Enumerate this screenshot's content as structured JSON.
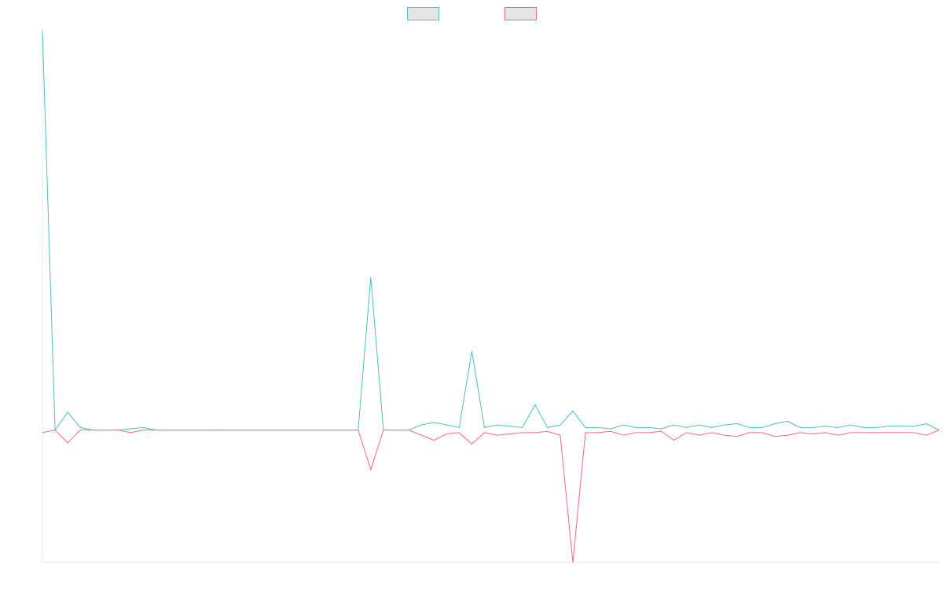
{
  "chart_data": {
    "type": "line",
    "title": "",
    "xlabel": "",
    "ylabel": "",
    "grid": false,
    "legend_position": "top-center",
    "ylim": [
      -52,
      158
    ],
    "x": [
      0,
      1,
      2,
      3,
      4,
      5,
      6,
      7,
      8,
      9,
      10,
      11,
      12,
      13,
      14,
      15,
      16,
      17,
      18,
      19,
      20,
      21,
      22,
      23,
      24,
      25,
      26,
      27,
      28,
      29,
      30,
      31,
      32,
      33,
      34,
      35,
      36,
      37,
      38,
      39,
      40,
      41,
      42,
      43,
      44,
      45,
      46,
      47,
      48,
      49,
      50,
      51,
      52,
      53,
      54,
      55,
      56,
      57,
      58,
      59,
      60,
      61,
      62,
      63,
      64,
      65,
      66,
      67,
      68,
      69,
      70,
      71
    ],
    "series": [
      {
        "name": "",
        "color": "#4bc0c0",
        "fill": "#e5e5e5",
        "values": [
          157,
          0,
          7,
          1,
          0,
          0,
          0,
          0.5,
          1,
          0,
          0,
          0,
          0,
          0,
          0,
          0,
          0,
          0,
          0,
          0,
          0,
          0,
          0,
          0,
          0,
          0,
          60,
          0,
          0,
          0,
          2,
          3,
          2,
          1,
          31,
          1,
          2,
          1.5,
          1,
          10,
          1,
          2,
          7.5,
          1,
          1,
          0.5,
          2,
          1,
          1,
          0.5,
          2,
          1,
          2,
          1,
          2,
          2.5,
          1,
          1,
          2.5,
          3.5,
          1,
          1,
          1.5,
          1,
          2,
          1,
          1,
          1.5,
          1.5,
          1.5,
          2.5,
          0
        ]
      },
      {
        "name": "",
        "color": "#ff6384",
        "fill": "#e5e5e5",
        "values": [
          -1,
          0,
          -5,
          0,
          0,
          0,
          0,
          -1,
          0,
          0,
          0,
          0,
          0,
          0,
          0,
          0,
          0,
          0,
          0,
          0,
          0,
          0,
          0,
          0,
          0,
          0,
          -15.5,
          0,
          0,
          0,
          -2,
          -4,
          -1.5,
          -1,
          -5.5,
          -1,
          -2,
          -1.5,
          -1,
          -1,
          -0.5,
          -2,
          -52,
          -1,
          -1,
          -0.5,
          -2,
          -1,
          -1,
          -0.5,
          -4,
          -1,
          -2,
          -1,
          -2,
          -2.5,
          -1,
          -1,
          -2.5,
          -2,
          -1,
          -1.5,
          -1,
          -2,
          -1,
          -1,
          -1,
          -1,
          -1,
          -1,
          -2,
          0
        ]
      }
    ]
  }
}
